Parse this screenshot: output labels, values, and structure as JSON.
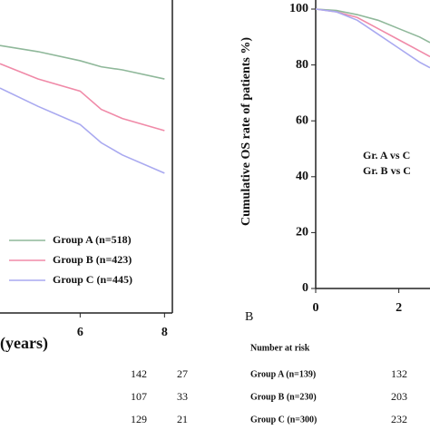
{
  "chart_data": [
    {
      "type": "line",
      "x_label": "(years)",
      "xlim": [
        4.1,
        8.1
      ],
      "ylim": [
        0,
        100
      ],
      "xticks": [
        6,
        8
      ],
      "x": [
        4.1,
        5,
        6,
        6.5,
        7,
        8
      ],
      "series": [
        {
          "name": "Group  A (n=518)",
          "color": "#8fb89a",
          "values": [
            88,
            86,
            83,
            81,
            80,
            77
          ]
        },
        {
          "name": "Group  B (n=423)",
          "color": "#f08aa8",
          "values": [
            82,
            77,
            73,
            67,
            64,
            60
          ]
        },
        {
          "name": "Group  C (n=445)",
          "color": "#a9a9f0",
          "values": [
            74,
            68,
            62,
            56,
            52,
            46
          ]
        }
      ],
      "risk_table": {
        "rows": [
          [
            142,
            27
          ],
          [
            107,
            33
          ],
          [
            129,
            21
          ]
        ]
      }
    },
    {
      "type": "line",
      "panel_label": "B",
      "y_label": "Cumulative  OS rate of patients %)",
      "xlim": [
        0,
        2.75
      ],
      "ylim": [
        0,
        100
      ],
      "xticks": [
        0,
        2
      ],
      "yticks": [
        0,
        20,
        40,
        60,
        80,
        100
      ],
      "annotations": [
        "Gr. A vs C",
        "Gr. B vs C"
      ],
      "x": [
        0,
        0.5,
        1,
        1.5,
        2,
        2.5,
        2.75
      ],
      "series": [
        {
          "color": "#8fb89a",
          "values": [
            100,
            99.5,
            98,
            96,
            93,
            90,
            88
          ]
        },
        {
          "color": "#f08aa8",
          "values": [
            100,
            99,
            97,
            93,
            89,
            85,
            83
          ]
        },
        {
          "color": "#a9a9f0",
          "values": [
            100,
            99,
            96,
            91,
            86,
            81,
            79
          ]
        }
      ],
      "risk_table": {
        "title": "Number at risk",
        "rows": [
          {
            "label": "Group A (n=139)",
            "values": [
              132
            ]
          },
          {
            "label": "Group B (n=230)",
            "values": [
              203
            ]
          },
          {
            "label": "Group C (n=300)",
            "values": [
              232
            ]
          }
        ]
      }
    }
  ]
}
